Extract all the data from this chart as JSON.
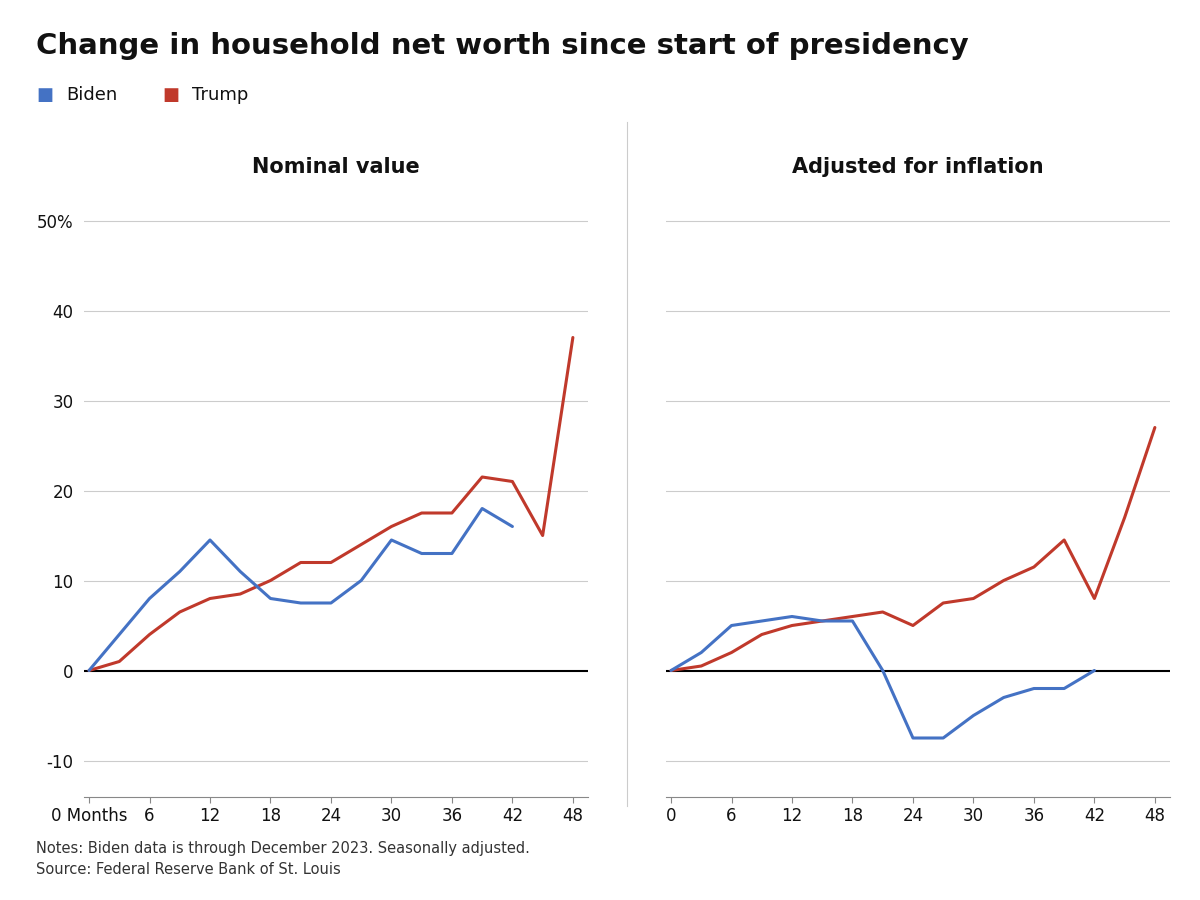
{
  "title": "Change in household net worth since start of presidency",
  "subtitle_left": "Nominal value",
  "subtitle_right": "Adjusted for inflation",
  "biden_color": "#4472C4",
  "trump_color": "#C0392B",
  "notes": "Notes: Biden data is through December 2023. Seasonally adjusted.\nSource: Federal Reserve Bank of St. Louis",
  "nominal_months": [
    0,
    3,
    6,
    9,
    12,
    15,
    18,
    21,
    24,
    27,
    30,
    33,
    36,
    39,
    42,
    45,
    48
  ],
  "nominal_biden": [
    0,
    4,
    8,
    11,
    14.5,
    11,
    8,
    7.5,
    7.5,
    10,
    14.5,
    13,
    13,
    18,
    16,
    null,
    null
  ],
  "nominal_trump": [
    0,
    1,
    4,
    6.5,
    8,
    8.5,
    10,
    12,
    12,
    14,
    16,
    17.5,
    17.5,
    21.5,
    21,
    15,
    37
  ],
  "inflation_months": [
    0,
    3,
    6,
    9,
    12,
    15,
    18,
    21,
    24,
    27,
    30,
    33,
    36,
    39,
    42,
    45,
    48
  ],
  "inflation_biden": [
    0,
    2,
    5,
    5.5,
    6,
    5.5,
    5.5,
    0,
    -7.5,
    -7.5,
    -5,
    -3,
    -2,
    -2,
    0,
    null,
    null
  ],
  "inflation_trump": [
    0,
    0.5,
    2,
    4,
    5,
    5.5,
    6,
    6.5,
    5,
    7.5,
    8,
    10,
    11.5,
    14.5,
    8,
    17,
    27
  ],
  "ylim": [
    -14,
    54
  ],
  "yticks": [
    -10,
    0,
    10,
    20,
    30,
    40,
    50
  ],
  "xticks": [
    0,
    6,
    12,
    18,
    24,
    30,
    36,
    42,
    48
  ],
  "background_color": "#FFFFFF",
  "grid_color": "#CCCCCC",
  "zero_line_color": "#000000"
}
